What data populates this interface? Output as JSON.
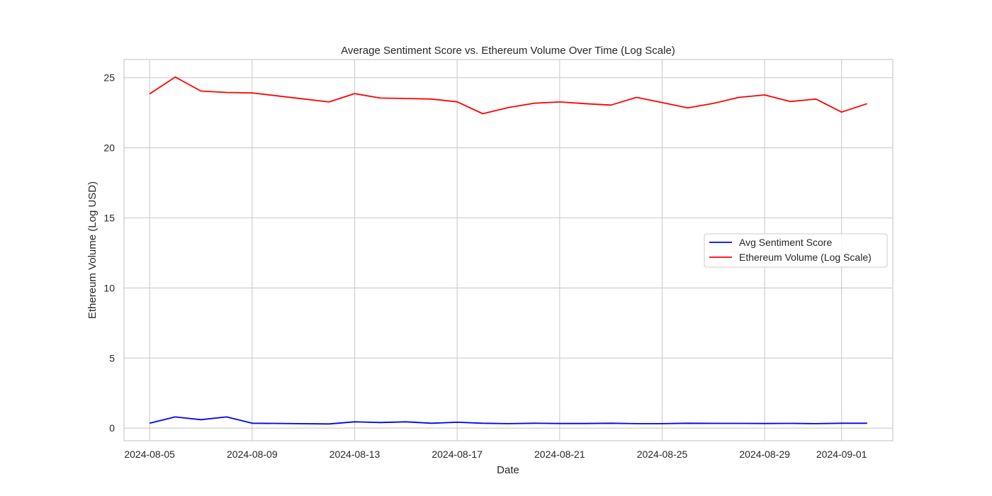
{
  "chart_data": {
    "type": "line",
    "title": "Average Sentiment Score vs. Ethereum Volume Over Time (Log Scale)",
    "xlabel": "Date",
    "ylabel": "Ethereum Volume (Log USD)",
    "ylim": [
      -0.9,
      26.3
    ],
    "xlim": [
      "2024-08-04",
      "2024-09-03"
    ],
    "grid": true,
    "legend_position": "center-right",
    "x_ticks": [
      "2024-08-05",
      "2024-08-09",
      "2024-08-13",
      "2024-08-17",
      "2024-08-21",
      "2024-08-25",
      "2024-08-29",
      "2024-09-01"
    ],
    "y_ticks": [
      0,
      5,
      10,
      15,
      20,
      25
    ],
    "x": [
      "2024-08-05",
      "2024-08-06",
      "2024-08-07",
      "2024-08-08",
      "2024-08-09",
      "2024-08-12",
      "2024-08-13",
      "2024-08-14",
      "2024-08-15",
      "2024-08-16",
      "2024-08-17",
      "2024-08-18",
      "2024-08-19",
      "2024-08-20",
      "2024-08-21",
      "2024-08-22",
      "2024-08-23",
      "2024-08-24",
      "2024-08-25",
      "2024-08-26",
      "2024-08-27",
      "2024-08-28",
      "2024-08-29",
      "2024-08-30",
      "2024-08-31",
      "2024-09-01",
      "2024-09-02"
    ],
    "series": [
      {
        "name": "Avg Sentiment Score",
        "color": "#0000ff",
        "values": [
          0.35,
          0.8,
          0.6,
          0.8,
          0.35,
          0.3,
          0.45,
          0.4,
          0.45,
          0.35,
          0.42,
          0.35,
          0.32,
          0.35,
          0.33,
          0.33,
          0.35,
          0.32,
          0.32,
          0.35,
          0.34,
          0.34,
          0.33,
          0.34,
          0.32,
          0.35,
          0.35
        ]
      },
      {
        "name": "Ethereum Volume (Log Scale)",
        "color": "#ff0000",
        "values": [
          23.85,
          25.05,
          24.05,
          23.95,
          23.92,
          23.27,
          23.87,
          23.55,
          23.52,
          23.48,
          23.28,
          22.43,
          22.87,
          23.18,
          23.27,
          23.15,
          23.05,
          23.6,
          23.23,
          22.85,
          23.17,
          23.6,
          23.77,
          23.3,
          23.48,
          22.55,
          23.15
        ]
      }
    ]
  }
}
